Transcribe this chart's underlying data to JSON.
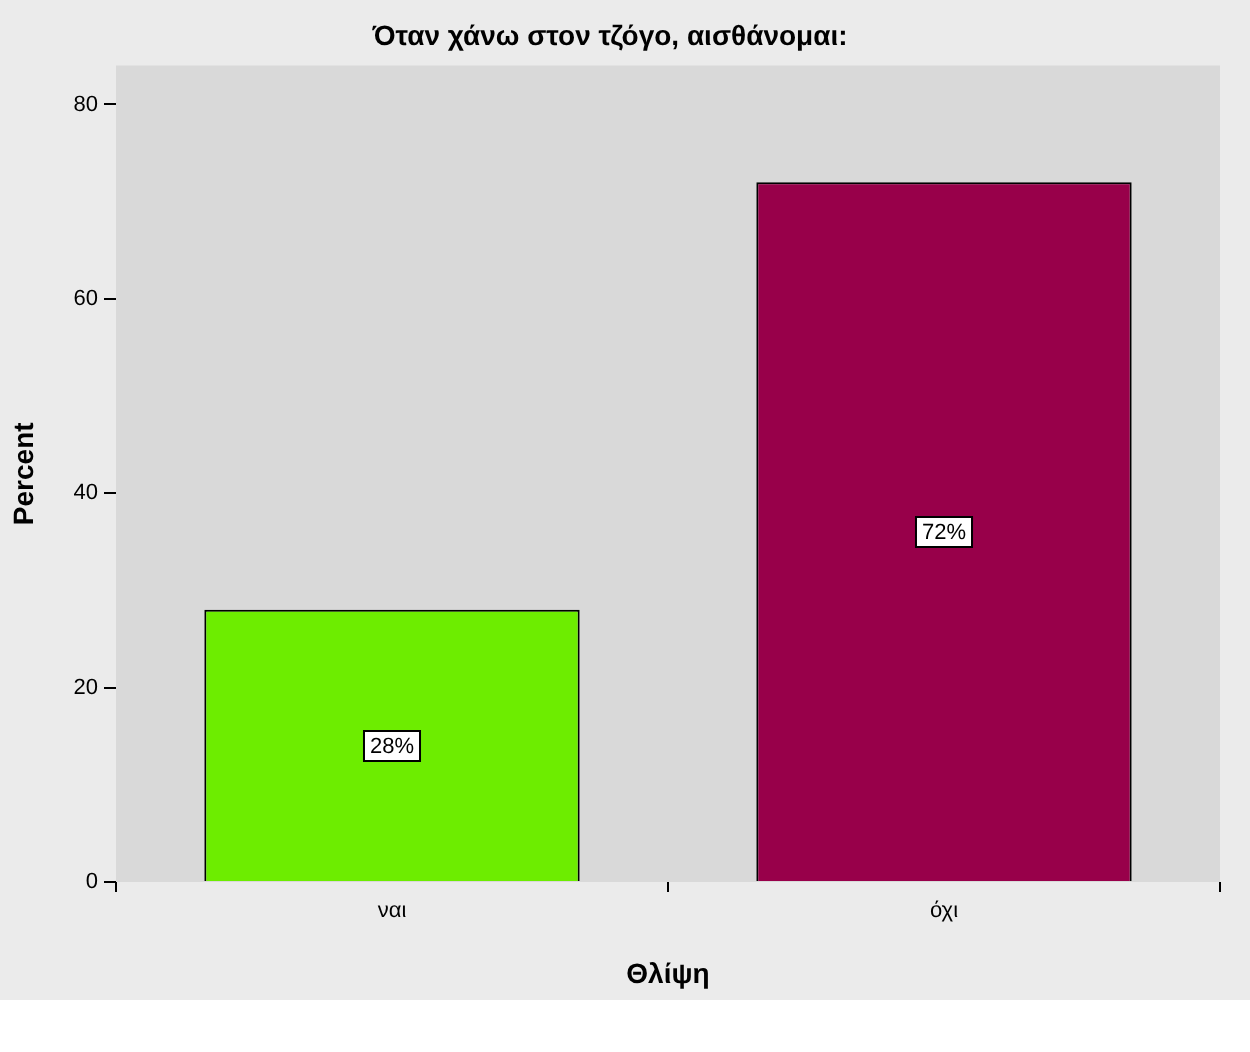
{
  "chart_data": {
    "type": "bar",
    "title": "Όταν χάνω στον τζόγο, αισθάνομαι:",
    "xlabel": "Θλίψη",
    "ylabel": "Percent",
    "categories": [
      "ναι",
      "όχι"
    ],
    "values": [
      28,
      72
    ],
    "colors": [
      "#6ded00",
      "#98004a"
    ],
    "value_labels": [
      "28%",
      "72%"
    ],
    "ylim": [
      0,
      84
    ],
    "yticks": [
      0,
      20,
      40,
      60,
      80
    ],
    "grid": false,
    "legend": false
  }
}
